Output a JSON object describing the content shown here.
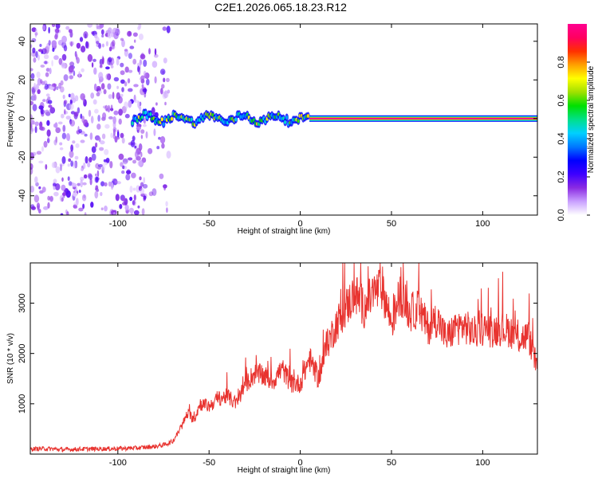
{
  "title": "C2E1.2026.065.18.23.R12",
  "chart_data": [
    {
      "type": "heatmap",
      "name": "spectrogram",
      "xlabel": "Height of straight line (km)",
      "ylabel": "Frequency (Hz)",
      "xlim": [
        -148,
        130
      ],
      "ylim": [
        -50,
        49
      ],
      "xticks": [
        -100,
        -50,
        0,
        50,
        100
      ],
      "yticks": [
        -40,
        -20,
        0,
        20,
        40
      ],
      "colorbar": {
        "label": "Normalized spectral amplitude",
        "range": [
          0.0,
          1.0
        ],
        "ticks": [
          0.0,
          0.2,
          0.4,
          0.6,
          0.8
        ],
        "tick_labels": [
          "0.0",
          "0.2",
          "0.4",
          "0.6",
          "0.8"
        ],
        "colors": [
          "#ffffff",
          "#c9a0ff",
          "#8a2be2",
          "#3d00ff",
          "#0000ff",
          "#0078ff",
          "#00d0ff",
          "#00e08a",
          "#00e000",
          "#a0e000",
          "#ffff00",
          "#ffa000",
          "#ff3000",
          "#ff0060",
          "#ff0090"
        ]
      },
      "regions": [
        {
          "description": "Scattered low-amplitude noise",
          "x_range": [
            -148,
            -72
          ],
          "y_range": [
            -50,
            49
          ],
          "amplitude": 0.15
        },
        {
          "description": "Wavering tone near 0 Hz",
          "x_range": [
            -92,
            5
          ],
          "center_frequency": 0,
          "frequency_wander": 3,
          "amplitude": 0.5
        },
        {
          "description": "Steady tone at 0 Hz",
          "x_range": [
            5,
            130
          ],
          "center_frequency": 0,
          "amplitude": 1.0
        }
      ]
    },
    {
      "type": "line",
      "name": "snr",
      "xlabel": "Height of straight line (km)",
      "ylabel": "SNR (10 * v/v)",
      "xlim": [
        -148,
        130
      ],
      "ylim": [
        0,
        3800
      ],
      "xticks": [
        -100,
        -50,
        0,
        50,
        100
      ],
      "yticks": [
        1000,
        2000,
        3000
      ],
      "color": "#e8332f",
      "series": [
        {
          "name": "SNR",
          "x": [
            -148,
            -140,
            -130,
            -120,
            -110,
            -100,
            -90,
            -80,
            -75,
            -70,
            -65,
            -62,
            -58,
            -55,
            -50,
            -45,
            -40,
            -35,
            -30,
            -25,
            -20,
            -15,
            -10,
            -5,
            0,
            5,
            10,
            15,
            20,
            25,
            30,
            35,
            40,
            45,
            50,
            55,
            60,
            65,
            70,
            75,
            80,
            85,
            90,
            95,
            100,
            105,
            110,
            115,
            120,
            125,
            130
          ],
          "y": [
            100,
            110,
            90,
            100,
            105,
            110,
            120,
            150,
            180,
            250,
            550,
            800,
            700,
            1000,
            950,
            1100,
            1150,
            1000,
            1400,
            1600,
            1550,
            1450,
            1700,
            1400,
            1400,
            1900,
            1500,
            2200,
            2600,
            2900,
            3200,
            2900,
            3200,
            3300,
            2600,
            3200,
            2800,
            2900,
            2500,
            2700,
            2300,
            2500,
            2550,
            2400,
            2500,
            2450,
            2500,
            2450,
            2300,
            2350,
            1700
          ]
        }
      ]
    }
  ]
}
